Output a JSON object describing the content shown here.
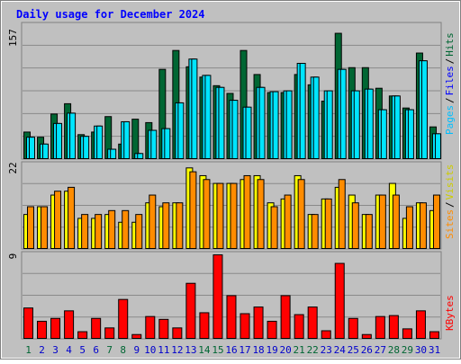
{
  "title": "Daily usage for December 2024",
  "colors": {
    "background": "#c0c0c0",
    "hits": "#006633",
    "files": "#00e5ff",
    "pages": "#00e5ff",
    "visits": "#ffff00",
    "sites": "#ff8c00",
    "kbytes": "#ff0000",
    "title": "#0000ff",
    "weekend_label": "#006633",
    "weekday_label": "#0000cc"
  },
  "panels": {
    "top": {
      "max_label": "157",
      "legend": [
        {
          "text": "Pages",
          "color": "#00bfff"
        },
        {
          "text": "/",
          "color": "#000000"
        },
        {
          "text": "Files",
          "color": "#0000ff"
        },
        {
          "text": "/",
          "color": "#000000"
        },
        {
          "text": "Hits",
          "color": "#006633"
        }
      ]
    },
    "middle": {
      "max_label": "22",
      "legend": [
        {
          "text": "Sites",
          "color": "#ff8c00"
        },
        {
          "text": "/",
          "color": "#000000"
        },
        {
          "text": "Visits",
          "color": "#cccc00"
        }
      ]
    },
    "bottom": {
      "max_label": "9",
      "legend": [
        {
          "text": "KBytes",
          "color": "#ff0000"
        }
      ]
    }
  },
  "chart_data": {
    "type": "bar",
    "title": "Daily usage for December 2024",
    "categories": [
      "1",
      "2",
      "3",
      "4",
      "5",
      "6",
      "7",
      "8",
      "9",
      "10",
      "11",
      "12",
      "13",
      "14",
      "15",
      "16",
      "17",
      "18",
      "19",
      "20",
      "21",
      "22",
      "23",
      "24",
      "25",
      "26",
      "27",
      "28",
      "29",
      "30",
      "31"
    ],
    "weekend_days": [
      "1",
      "7",
      "8",
      "14",
      "15",
      "21",
      "22",
      "28",
      "29"
    ],
    "panels": [
      {
        "name": "top",
        "ymax": 157,
        "series": [
          {
            "name": "Hits",
            "values": [
              32,
              26,
              53,
              65,
              29,
              32,
              50,
              18,
              47,
              43,
              105,
              127,
              108,
              96,
              86,
              77,
              127,
              99,
              78,
              78,
              99,
              87,
              68,
              147,
              107,
              107,
              83,
              74,
              60,
              124,
              38
            ]
          },
          {
            "name": "Files",
            "values": [
              26,
              18,
              42,
              54,
              27,
              39,
              12,
              44,
              7,
              34,
              36,
              66,
              117,
              98,
              84,
              69,
              61,
              84,
              79,
              80,
              112,
              96,
              80,
              105,
              80,
              82,
              58,
              74,
              58,
              115,
              30
            ]
          },
          {
            "name": "Pages",
            "values": [
              26,
              18,
              42,
              54,
              27,
              39,
              12,
              44,
              7,
              34,
              36,
              66,
              117,
              98,
              84,
              69,
              61,
              84,
              79,
              80,
              112,
              96,
              80,
              105,
              80,
              82,
              58,
              74,
              58,
              115,
              30
            ]
          }
        ]
      },
      {
        "name": "middle",
        "ymax": 22,
        "series": [
          {
            "name": "Visits",
            "values": [
              9,
              11,
              14,
              15,
              8,
              8,
              9,
              7,
              7,
              12,
              11,
              12,
              21,
              19,
              17,
              17,
              18,
              19,
              12,
              13,
              19,
              9,
              13,
              16,
              14,
              9,
              14,
              17,
              8,
              12,
              10
            ]
          },
          {
            "name": "Sites",
            "values": [
              11,
              11,
              15,
              16,
              9,
              9,
              10,
              10,
              9,
              14,
              12,
              12,
              20,
              18,
              17,
              17,
              19,
              18,
              11,
              14,
              18,
              9,
              13,
              18,
              12,
              9,
              14,
              14,
              11,
              12,
              14
            ]
          }
        ]
      },
      {
        "name": "bottom",
        "ymax": 9,
        "series": [
          {
            "name": "KBytes",
            "values": [
              3.3,
              1.9,
              2.2,
              3.0,
              0.8,
              2.2,
              1.2,
              4.2,
              0.5,
              2.4,
              2.1,
              1.2,
              5.9,
              2.8,
              8.9,
              4.6,
              2.7,
              3.4,
              1.9,
              4.6,
              2.6,
              3.4,
              0.9,
              8.0,
              2.2,
              0.5,
              2.4,
              2.5,
              1.1,
              3.0,
              0.8
            ]
          }
        ]
      }
    ]
  }
}
